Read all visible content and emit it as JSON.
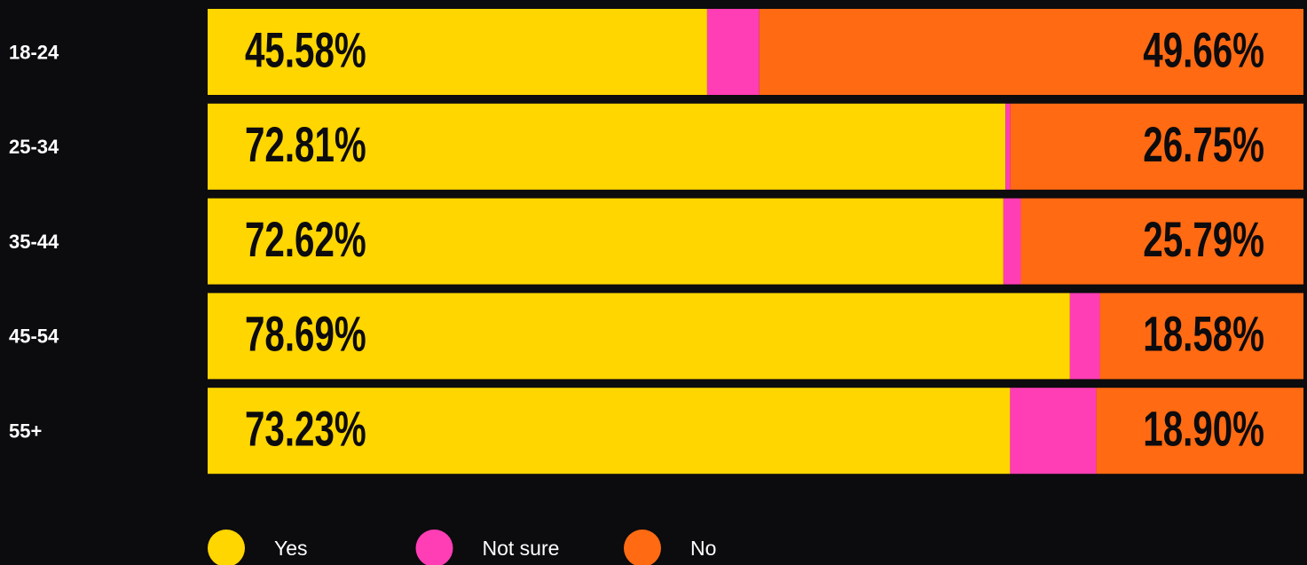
{
  "chart_data": {
    "type": "stacked-bar-horizontal",
    "categories": [
      "18-24",
      "25-34",
      "35-44",
      "45-54",
      "55+"
    ],
    "xlim": [
      0,
      100
    ],
    "series": [
      {
        "name": "Yes",
        "color": "#ffd600",
        "values": [
          45.58,
          72.81,
          72.62,
          78.69,
          73.23
        ],
        "value_labels": [
          "45.58%",
          "72.81%",
          "72.62%",
          "78.69%",
          "73.23%"
        ]
      },
      {
        "name": "Not sure",
        "color": "#ff3eb5",
        "values": [
          4.76,
          0.44,
          1.59,
          2.73,
          7.87
        ]
      },
      {
        "name": "No",
        "color": "#ff6a13",
        "values": [
          49.66,
          26.75,
          25.79,
          18.58,
          18.9
        ],
        "value_labels": [
          "49.66%",
          "26.75%",
          "25.79%",
          "18.58%",
          "18.90%"
        ]
      }
    ],
    "legend": "bottom-left"
  }
}
